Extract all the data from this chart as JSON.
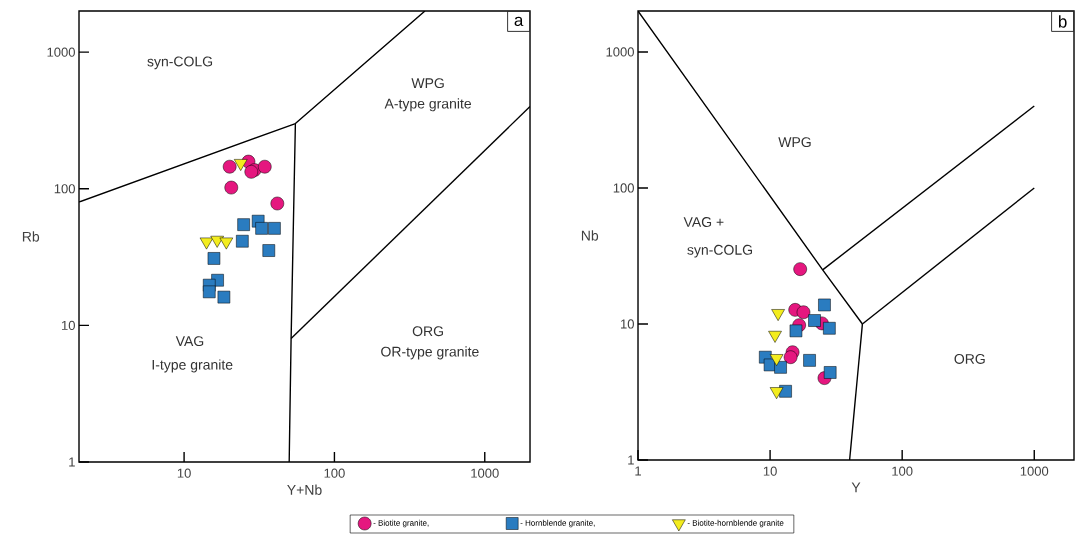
{
  "chart_data": [
    {
      "type": "scatter",
      "xlabel": "Y+Nb",
      "ylabel": "Rb",
      "log": "xy",
      "xlim": [
        2,
        2000
      ],
      "ylim": [
        1,
        2000
      ],
      "xticks": [
        10,
        100,
        1000
      ],
      "yticks": [
        1,
        10,
        100,
        1000
      ],
      "legend": "bottom",
      "series": [
        {
          "name": "- Biotite granite,",
          "color": "#e5177f",
          "marker": "circle",
          "x": [
            20.1,
            26.8,
            29.4,
            28,
            34.4,
            20.6,
            41.7
          ],
          "values": [
            145,
            158,
            137,
            133,
            145,
            102,
            78
          ]
        },
        {
          "name": "- Hornblende granite,",
          "color": "#2a7cc0",
          "marker": "square",
          "x": [
            24.9,
            31.1,
            32.8,
            39.9,
            24.4,
            36.6,
            15.8,
            16.7,
            14.7,
            14.7,
            18.4
          ],
          "values": [
            54.6,
            57.9,
            51.3,
            51.3,
            41.3,
            35.3,
            30.9,
            21.4,
            19.7,
            17.6,
            16.1
          ]
        },
        {
          "name": "- Biotite-hornblende granite",
          "color": "#f3ec1e",
          "marker": "triangle",
          "x": [
            23.8,
            14.1,
            16.6,
            19.1
          ],
          "values": [
            154,
            41,
            42.2,
            41
          ]
        },
        {
          "type": "line",
          "color": "#000000",
          "marker": "none",
          "x": [
            2,
            55,
            400
          ],
          "values": [
            80,
            300,
            2000
          ]
        },
        {
          "type": "line",
          "color": "#000000",
          "marker": "none",
          "x": [
            55,
            51.5,
            50
          ],
          "values": [
            300,
            8,
            1
          ]
        },
        {
          "type": "line",
          "color": "#000000",
          "marker": "none",
          "x": [
            51.5,
            2000
          ],
          "values": [
            8,
            400
          ]
        }
      ],
      "annotations": [
        "a",
        "syn-COLG",
        "WPG",
        "A-type granite",
        "VAG",
        "I-type granite",
        "ORG",
        "OR-type granite"
      ]
    },
    {
      "type": "scatter",
      "xlabel": "Y",
      "ylabel": "Nb",
      "log": "xy",
      "xlim": [
        1,
        2000
      ],
      "ylim": [
        1,
        2000
      ],
      "xticks": [
        1,
        10,
        100,
        1000
      ],
      "yticks": [
        1,
        10,
        100,
        1000
      ],
      "series": [
        {
          "color": "#e5177f",
          "marker": "circle",
          "x": [
            16.9,
            15.5,
            17.9,
            16.6,
            24.7,
            14.8,
            14.3,
            25.8
          ],
          "values": [
            25.3,
            12.7,
            12.2,
            9.8,
            10.1,
            6.2,
            5.7,
            4.0
          ]
        },
        {
          "color": "#2a7cc0",
          "marker": "square",
          "x": [
            25.8,
            21.7,
            28.1,
            15.7,
            9.2,
            10.0,
            12.0,
            19.9,
            28.5,
            13.1
          ],
          "values": [
            13.8,
            10.6,
            9.3,
            8.9,
            5.7,
            5.0,
            4.8,
            5.4,
            4.4,
            3.2
          ]
        },
        {
          "color": "#f3ec1e",
          "marker": "triangle",
          "x": [
            11.5,
            10.9,
            11.2,
            11.2
          ],
          "values": [
            12.0,
            8.3,
            5.6,
            3.2
          ]
        },
        {
          "type": "line",
          "color": "#000000",
          "marker": "none",
          "x": [
            1,
            25,
            50
          ],
          "values": [
            2000,
            25,
            10
          ]
        },
        {
          "type": "line",
          "color": "#000000",
          "marker": "none",
          "x": [
            25,
            1000
          ],
          "values": [
            25,
            400
          ]
        },
        {
          "type": "line",
          "color": "#000000",
          "marker": "none",
          "x": [
            50,
            1000
          ],
          "values": [
            10,
            100
          ]
        },
        {
          "type": "line",
          "color": "#000000",
          "marker": "none",
          "x": [
            50,
            40
          ],
          "values": [
            10,
            1
          ]
        }
      ],
      "annotations": [
        "b",
        "WPG",
        "VAG +",
        "syn-COLG",
        "ORG"
      ]
    }
  ]
}
